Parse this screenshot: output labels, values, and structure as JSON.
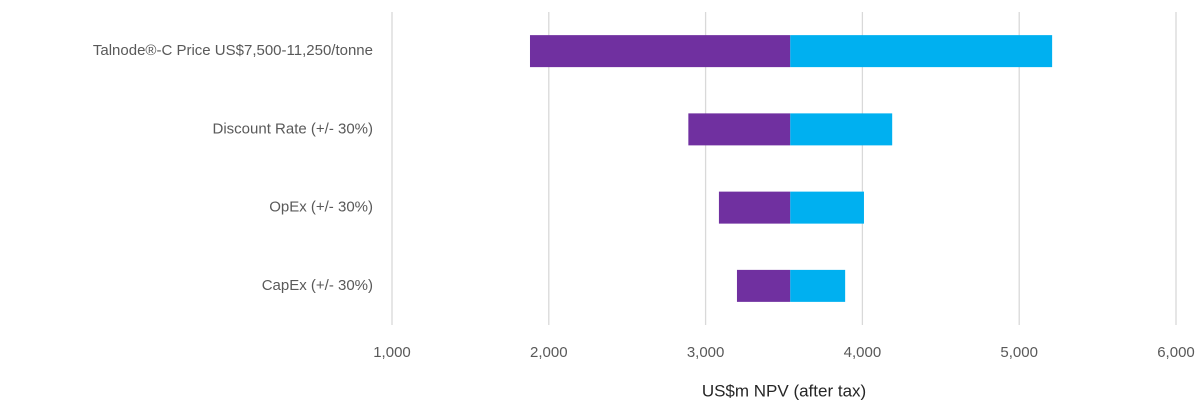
{
  "chart_data": {
    "type": "tornado",
    "categories": [
      "Talnode®-C Price US$7,500-11,250/tonne",
      "Discount Rate (+/- 30%)",
      "OpEx (+/- 30%)",
      "CapEx (+/- 30%)"
    ],
    "base_value": 3540,
    "series": [
      {
        "color": "#7030a0",
        "values": [
          1880,
          2890,
          3085,
          3200
        ]
      },
      {
        "color": "#00b0f0",
        "values": [
          5210,
          4190,
          4010,
          3890
        ]
      }
    ],
    "xlabel": "US$m NPV (after tax)",
    "xlim": [
      1000,
      6000
    ],
    "xticks": [
      {
        "value": 1000,
        "label": "1,000"
      },
      {
        "value": 2000,
        "label": "2,000"
      },
      {
        "value": 3000,
        "label": "3,000"
      },
      {
        "value": 4000,
        "label": "4,000"
      },
      {
        "value": 5000,
        "label": "5,000"
      },
      {
        "value": 6000,
        "label": "6,000"
      }
    ],
    "grid": true
  }
}
